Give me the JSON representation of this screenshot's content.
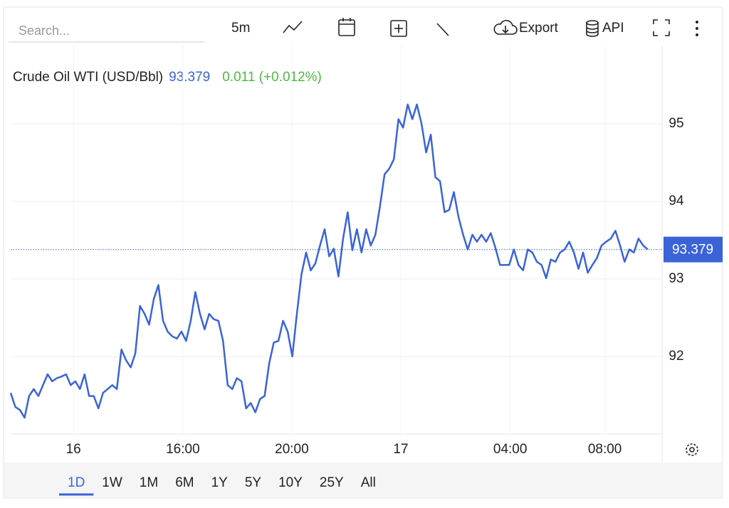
{
  "toolbar": {
    "search_placeholder": "Search...",
    "interval": "5m",
    "export": "Export",
    "api": "API"
  },
  "chart_data": {
    "type": "line",
    "title": "Crude Oil WTI (USD/Bbl)",
    "last_price": 93.379,
    "change": "0.011 (+0.012%)",
    "color": "#3a63d8",
    "values": [
      91.53,
      91.35,
      91.31,
      91.21,
      91.49,
      91.58,
      91.49,
      91.63,
      91.77,
      91.68,
      91.72,
      91.74,
      91.77,
      91.63,
      91.68,
      91.58,
      91.77,
      91.49,
      91.49,
      91.33,
      91.53,
      91.58,
      91.63,
      91.58,
      92.09,
      91.95,
      91.86,
      92.04,
      92.65,
      92.55,
      92.41,
      92.74,
      92.92,
      92.46,
      92.32,
      92.26,
      92.23,
      92.32,
      92.2,
      92.46,
      92.83,
      92.55,
      92.35,
      92.55,
      92.48,
      92.46,
      92.2,
      91.63,
      91.58,
      91.72,
      91.68,
      91.33,
      91.4,
      91.28,
      91.45,
      91.49,
      91.91,
      92.18,
      92.2,
      92.46,
      92.32,
      92.0,
      92.55,
      93.06,
      93.34,
      93.11,
      93.2,
      93.43,
      93.64,
      93.29,
      93.39,
      93.03,
      93.52,
      93.86,
      93.37,
      93.64,
      93.34,
      93.64,
      93.43,
      93.57,
      93.94,
      94.35,
      94.42,
      94.54,
      95.06,
      94.95,
      95.25,
      95.06,
      95.25,
      95.0,
      94.63,
      94.86,
      94.31,
      94.26,
      93.86,
      93.89,
      94.12,
      93.8,
      93.57,
      93.38,
      93.57,
      93.48,
      93.57,
      93.48,
      93.59,
      93.4,
      93.18,
      93.18,
      93.18,
      93.38,
      93.18,
      93.11,
      93.38,
      93.34,
      93.22,
      93.18,
      93.01,
      93.25,
      93.22,
      93.34,
      93.38,
      93.48,
      93.34,
      93.13,
      93.34,
      93.08,
      93.18,
      93.27,
      93.43,
      93.48,
      93.52,
      93.62,
      93.43,
      93.22,
      93.38,
      93.34,
      93.52,
      93.43,
      93.38
    ],
    "xlim": [
      0,
      141.1
    ],
    "xticks": [
      {
        "value": 13.6,
        "label": "16"
      },
      {
        "value": 37.3,
        "label": "16:00"
      },
      {
        "value": 60.9,
        "label": "20:00"
      },
      {
        "value": 84.5,
        "label": "17"
      },
      {
        "value": 108.2,
        "label": "04:00"
      },
      {
        "value": 128.7,
        "label": "08:00"
      }
    ],
    "ylim": [
      91,
      96
    ],
    "yticks": [
      92,
      93,
      94,
      95
    ],
    "grid": true,
    "ranges": [
      "1D",
      "1W",
      "1M",
      "6M",
      "1Y",
      "5Y",
      "10Y",
      "25Y",
      "All"
    ],
    "selected_range": 0
  }
}
